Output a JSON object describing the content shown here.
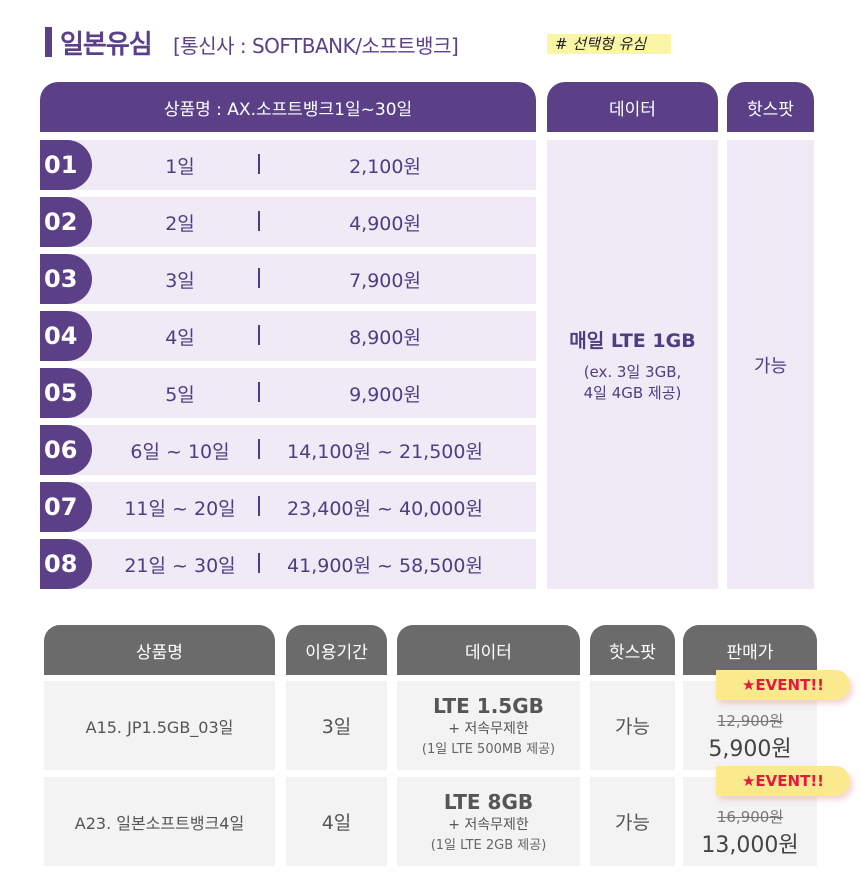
{
  "header": {
    "title": "일본유심",
    "subtitle": "[통신사 : SOFTBANK/소프트뱅크]",
    "tag": "# 선택형 유심"
  },
  "top_table": {
    "headers": {
      "product": "상품명  :  AX.소프트뱅크1일~30일",
      "data": "데이터",
      "hotspot": "핫스팟"
    },
    "rows": [
      {
        "no": "01",
        "days": "1일",
        "price": "2,100원"
      },
      {
        "no": "02",
        "days": "2일",
        "price": "4,900원"
      },
      {
        "no": "03",
        "days": "3일",
        "price": "7,900원"
      },
      {
        "no": "04",
        "days": "4일",
        "price": "8,900원"
      },
      {
        "no": "05",
        "days": "5일",
        "price": "9,900원"
      },
      {
        "no": "06",
        "days": "6일 ~ 10일",
        "price": "14,100원 ~ 21,500원"
      },
      {
        "no": "07",
        "days": "11일 ~ 20일",
        "price": "23,400원 ~ 40,000원"
      },
      {
        "no": "08",
        "days": "21일 ~ 30일",
        "price": "41,900원 ~ 58,500원"
      }
    ],
    "separator": "|",
    "data_main": "매일 LTE 1GB",
    "data_note1": "(ex. 3일 3GB,",
    "data_note2": "4일 4GB 제공)",
    "hotspot": "가능"
  },
  "bottom_table": {
    "headers": [
      "상품명",
      "이용기간",
      "데이터",
      "핫스팟",
      "판매가"
    ],
    "rows": [
      {
        "name": "A15. JP1.5GB_03일",
        "period": "3일",
        "data": "LTE 1.5GB",
        "data_sub": "+ 저속무제한",
        "data_note": "(1일 LTE 500MB 제공)",
        "hotspot": "가능",
        "event": "★EVENT!!",
        "old_price": "12,900원",
        "price": "5,900원"
      },
      {
        "name": "A23. 일본소프트뱅크4일",
        "period": "4일",
        "data": "LTE 8GB",
        "data_sub": "+ 저속무제한",
        "data_note": "(1일 LTE 2GB 제공)",
        "hotspot": "가능",
        "event": "★EVENT!!",
        "old_price": "16,900원",
        "price": "13,000원"
      }
    ]
  },
  "colors": {
    "purple": "#5b4088",
    "row_bg": "#efeaf6",
    "gray_header": "#6b6b6b",
    "event_red": "#e8173e",
    "event_bg": "#fbe98e"
  }
}
